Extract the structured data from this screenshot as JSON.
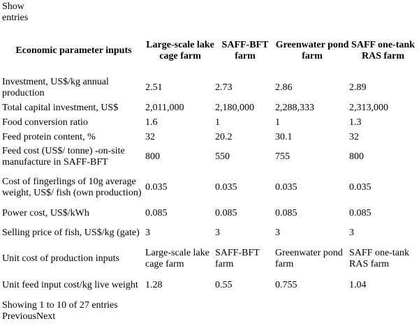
{
  "show_entries": "Show entries",
  "table": {
    "headers": [
      "Economic parameter inputs",
      "Large-scale lake cage farm",
      "SAFF-BFT farm",
      "Greenwater pond farm",
      "SAFF one-tank RAS farm"
    ],
    "rows": [
      [
        "Investment, US$/kg annual production",
        "2.51",
        "2.73",
        "2.86",
        "2.89"
      ],
      [
        "Total capital investment, US$",
        "2,011,000",
        "2,180,000",
        "2,288,333",
        "2,313,000"
      ],
      [
        "Food conversion ratio",
        "1.6",
        "1",
        "1",
        "1.3"
      ],
      [
        "Feed protein content, %",
        "32",
        "20.2",
        "30.1",
        "32"
      ],
      [
        "Feed cost (US$/ tonne) -on-site manufacture in SAFF-BFT",
        "800",
        "550",
        "755",
        "800"
      ],
      [
        "Cost of fingerlings of 10g average weight, US$/ fish (own production)",
        "0.035",
        "0.035",
        "0.035",
        "0.035"
      ],
      [
        "Power cost, US$/kWh",
        "0.085",
        "0.085",
        "0.085",
        "0.085"
      ],
      [
        "Selling price of fish, US$/kg (gate)",
        "3",
        "3",
        "3",
        "3"
      ],
      [
        "Unit cost of production inputs",
        "Large-scale lake cage farm",
        "SAFF-BFT farm",
        "Greenwater pond farm",
        "SAFF one-tank RAS farm"
      ],
      [
        "Unit feed input cost/kg live weight",
        "1.28",
        "0.55",
        "0.755",
        "1.04"
      ]
    ]
  },
  "info": "Showing 1 to 10 of 27 entries",
  "pager": {
    "previous": "Previous",
    "next": "Next"
  }
}
